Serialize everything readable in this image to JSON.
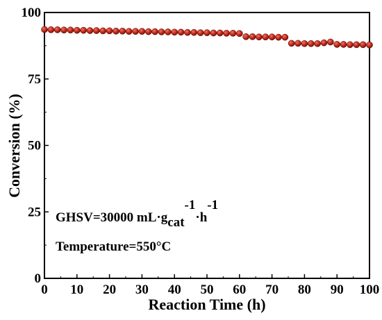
{
  "chart_data": {
    "type": "scatter",
    "xlabel": "Reaction Time (h)",
    "ylabel": "Conversion (%)",
    "xlim": [
      0,
      100
    ],
    "ylim": [
      0,
      100
    ],
    "x_ticks": [
      0,
      10,
      20,
      30,
      40,
      50,
      60,
      70,
      80,
      90,
      100
    ],
    "y_ticks": [
      0,
      25,
      50,
      75,
      100
    ],
    "grid": false,
    "marker_color": "#c0281c",
    "series": [
      {
        "x": [
          0,
          2,
          4,
          6,
          8,
          10,
          12,
          14,
          16,
          18,
          20,
          22,
          24,
          26,
          28,
          30,
          32,
          34,
          36,
          38,
          40,
          42,
          44,
          46,
          48,
          50,
          52,
          54,
          56,
          58,
          60,
          62,
          64,
          66,
          68,
          70,
          72,
          74,
          76,
          78,
          80,
          82,
          84,
          86,
          88,
          90,
          92,
          94,
          96,
          98,
          100
        ],
        "y": [
          93.6,
          93.5,
          93.5,
          93.4,
          93.4,
          93.3,
          93.3,
          93.2,
          93.2,
          93.1,
          93.1,
          93.0,
          93.0,
          92.9,
          92.9,
          92.9,
          92.8,
          92.8,
          92.7,
          92.7,
          92.6,
          92.6,
          92.5,
          92.5,
          92.4,
          92.4,
          92.3,
          92.3,
          92.2,
          92.2,
          92.1,
          90.9,
          90.9,
          90.8,
          90.8,
          90.8,
          90.7,
          90.7,
          88.4,
          88.4,
          88.3,
          88.3,
          88.3,
          88.6,
          88.9,
          88.0,
          88.0,
          87.9,
          87.9,
          87.9,
          87.8
        ]
      }
    ],
    "annotations": {
      "ghsv_main": "GHSV=30000 mL·g",
      "ghsv_sub": "cat",
      "ghsv_sup1": "-1",
      "ghsv_mid": "·h",
      "ghsv_sup2": "-1",
      "temperature": "Temperature=550°C"
    }
  }
}
